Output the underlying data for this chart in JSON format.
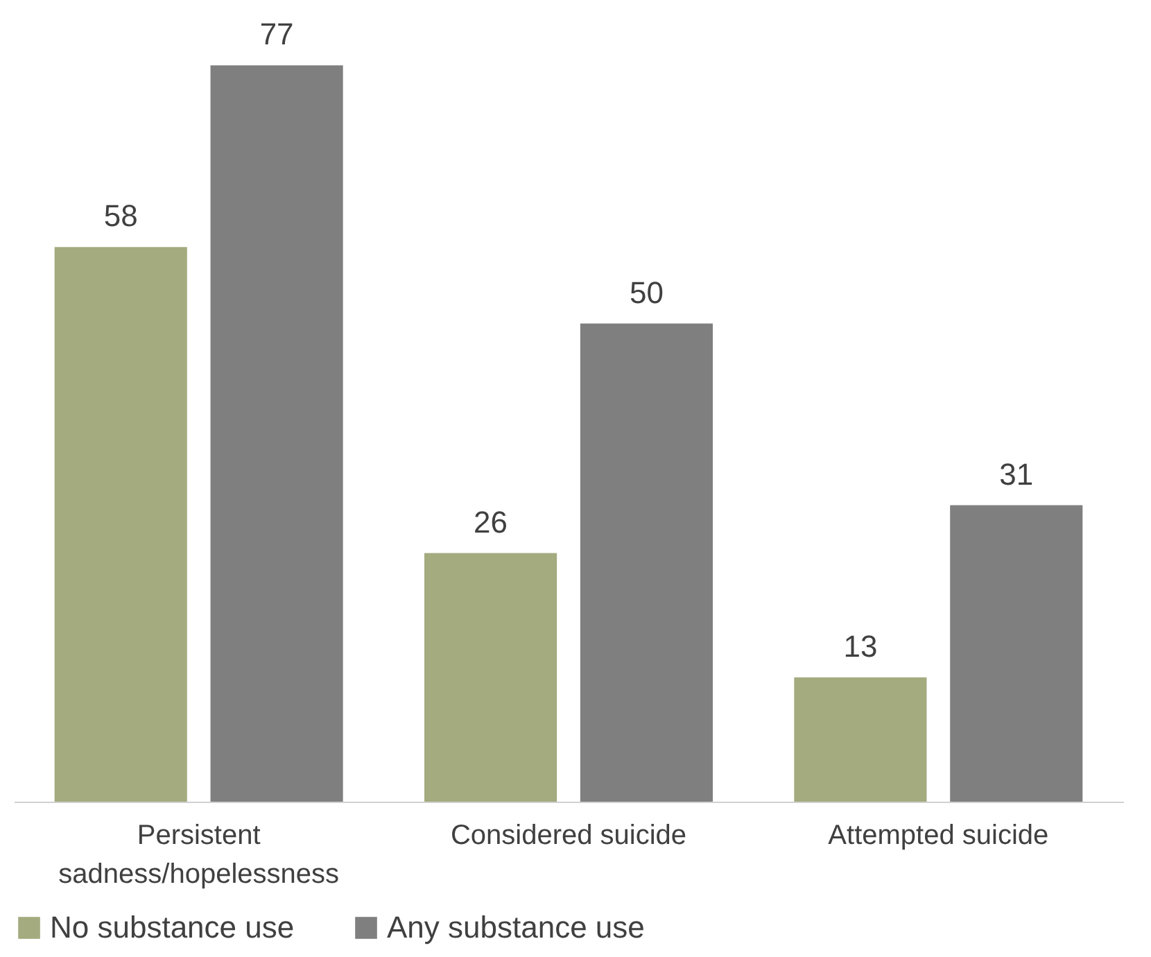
{
  "chart_data": {
    "type": "bar",
    "categories": [
      "Persistent sadness/hopelessness",
      "Considered suicide",
      "Attempted suicide"
    ],
    "series": [
      {
        "name": "No substance use",
        "color": "#a3ab7f",
        "values": [
          58,
          26,
          13
        ]
      },
      {
        "name": "Any substance use",
        "color": "#7f7f7f",
        "values": [
          77,
          50,
          31
        ]
      }
    ],
    "data_labels": true,
    "legend": "bottom",
    "grid": false
  }
}
